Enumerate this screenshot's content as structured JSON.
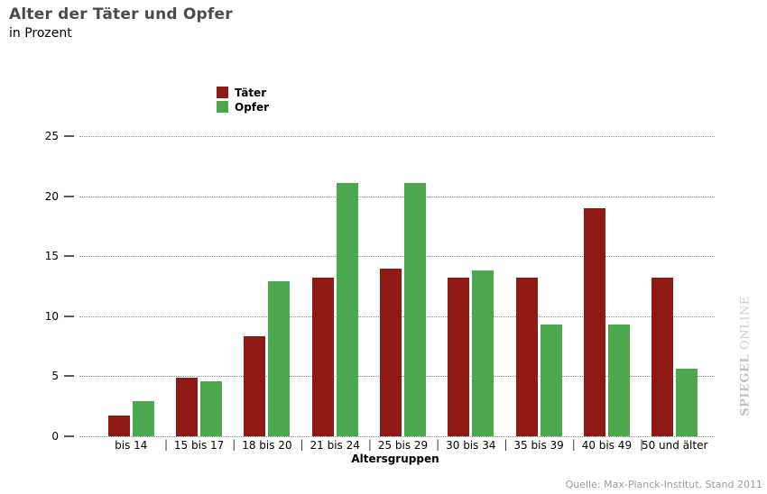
{
  "title": "Alter der Täter und Opfer",
  "subtitle": "in Prozent",
  "legend": {
    "items": [
      {
        "label": "Täter",
        "color": "#8e1a13"
      },
      {
        "label": "Opfer",
        "color": "#4ba84c"
      }
    ]
  },
  "chart_data": {
    "type": "bar",
    "categories": [
      "bis 14",
      "15 bis 17",
      "18 bis 20",
      "21 bis 24",
      "25 bis 29",
      "30 bis 34",
      "35 bis 39",
      "40 bis 49",
      "50 und älter"
    ],
    "series": [
      {
        "name": "Täter",
        "color": "#8e1a13",
        "values": [
          1.7,
          4.9,
          8.3,
          13.2,
          14.0,
          13.2,
          13.2,
          19.0,
          13.2
        ]
      },
      {
        "name": "Opfer",
        "color": "#4ba84c",
        "values": [
          2.9,
          4.6,
          12.9,
          21.1,
          21.1,
          13.8,
          9.3,
          9.3,
          5.6
        ]
      }
    ],
    "title": "Alter der Täter und Opfer",
    "xlabel": "Altersgruppen",
    "ylabel": "",
    "ylim": [
      0,
      25
    ],
    "yticks": [
      0,
      5,
      10,
      15,
      20,
      25
    ],
    "grid": "dotted-horizontal",
    "legend_position": "top-center",
    "category_separator": "|"
  },
  "watermark": {
    "bold": "SPIEGEL",
    "light": "ONLINE"
  },
  "source": "Quelle: Max-Planck-Institut, Stand 2011"
}
